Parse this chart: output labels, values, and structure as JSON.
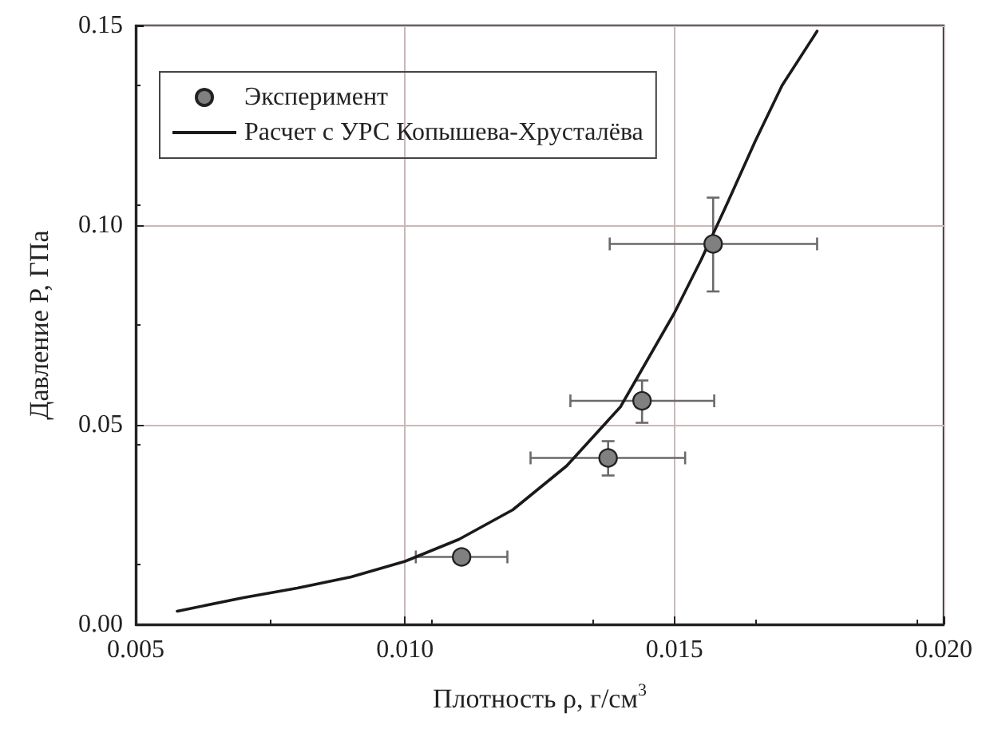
{
  "chart_data": {
    "type": "scatter",
    "xlabel": "Плотность ρ, г/см$^{3}$",
    "ylabel": "Давление P, ГПа",
    "xlim": [
      0.005,
      0.02
    ],
    "ylim": [
      0,
      0.15
    ],
    "xticks": [
      0.005,
      {
        "value": 0.01,
        "label": "0.010"
      },
      0.015,
      {
        "value": 0.02,
        "label": "0.020"
      }
    ],
    "yticks": [
      {
        "value": 0,
        "label": "0.00"
      },
      0.05,
      {
        "value": 0.1,
        "label": "0.10"
      },
      0.15
    ],
    "grid": true,
    "legend": "top left",
    "series": [
      {
        "name": "Эксперимент",
        "marker": "circle",
        "color": "#808080",
        "x": [
          0.01105,
          0.01377,
          0.0144,
          0.01572
        ],
        "values": [
          0.0169,
          0.0417,
          0.056,
          0.0953
        ],
        "errors": [
          null,
          [
            0.0373,
            0.0459
          ],
          [
            0.0505,
            0.0611
          ],
          [
            0.0834,
            0.1069
          ]
        ],
        "xerrors": [
          [
            0.0102,
            0.0119
          ],
          [
            0.01233,
            0.0152
          ],
          [
            0.01307,
            0.01574
          ],
          [
            0.0138,
            0.01765
          ]
        ]
      },
      {
        "name": "Расчет с УРС Копышева-Хрусталёва",
        "type": "line",
        "marker": "none",
        "line_style": "solid",
        "color": "#1a1a1a",
        "x": [
          0.00577,
          0.007,
          0.008,
          0.009,
          0.01,
          0.011,
          0.012,
          0.013,
          0.014,
          0.015,
          0.0155,
          0.016,
          0.0165,
          0.017,
          0.01765
        ],
        "values": [
          0.0033,
          0.0067,
          0.0091,
          0.0119,
          0.0158,
          0.0213,
          0.0287,
          0.0397,
          0.0545,
          0.078,
          0.0914,
          0.106,
          0.121,
          0.135,
          0.1486
        ]
      }
    ]
  }
}
